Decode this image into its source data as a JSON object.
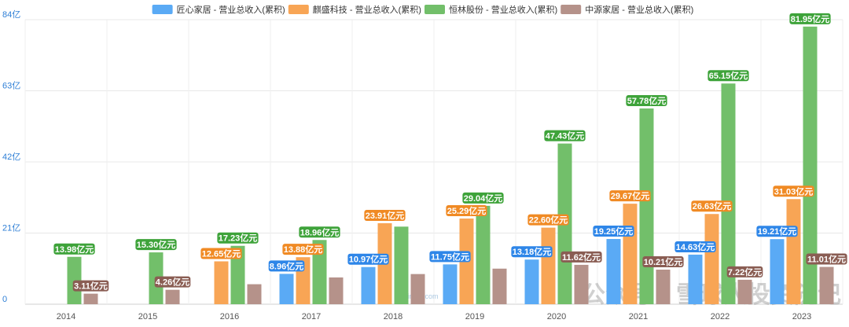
{
  "chart_data": {
    "type": "bar",
    "categories": [
      "2014",
      "2015",
      "2016",
      "2017",
      "2018",
      "2019",
      "2020",
      "2021",
      "2022",
      "2023"
    ],
    "ylim": [
      0,
      84
    ],
    "yticks": [
      0,
      21,
      42,
      63,
      84
    ],
    "ytick_labels": [
      "0",
      "21亿",
      "42亿",
      "63亿",
      "84亿"
    ],
    "legend_position": "top-center",
    "grid": true,
    "series": [
      {
        "name": "匠心家居 - 营业总收入(累积)",
        "color": "#5aaaf5",
        "label_color": "#2e86e8",
        "values": [
          null,
          null,
          null,
          8.96,
          10.97,
          11.75,
          13.18,
          19.25,
          14.63,
          19.21
        ],
        "labels": [
          null,
          null,
          null,
          "8.96亿元",
          "10.97亿元",
          "11.75亿元",
          "13.18亿元",
          "19.25亿元",
          "14.63亿元",
          "19.21亿元"
        ]
      },
      {
        "name": "麒盛科技 - 营业总收入(累积)",
        "color": "#f8a555",
        "label_color": "#f08a24",
        "values": [
          null,
          null,
          12.65,
          13.88,
          23.91,
          25.29,
          22.6,
          29.67,
          26.63,
          31.03
        ],
        "labels": [
          null,
          null,
          "12.65亿元",
          "13.88亿元",
          "23.91亿元",
          "25.29亿元",
          "22.60亿元",
          "29.67亿元",
          "26.63亿元",
          "31.03亿元"
        ]
      },
      {
        "name": "恒林股份 - 营业总收入(累积)",
        "color": "#72bf6a",
        "label_color": "#3ea33a",
        "values": [
          13.98,
          15.3,
          17.23,
          18.96,
          22.9,
          29.04,
          47.43,
          57.78,
          65.15,
          81.95
        ],
        "labels": [
          "13.98亿元",
          "15.30亿元",
          "17.23亿元",
          "18.96亿元",
          null,
          "29.04亿元",
          "47.43亿元",
          "57.78亿元",
          "65.15亿元",
          "81.95亿元"
        ]
      },
      {
        "name": "中源家居 - 营业总收入(累积)",
        "color": "#b5928a",
        "label_color": "#8a5d53",
        "values": [
          3.11,
          4.26,
          5.9,
          7.9,
          8.9,
          10.5,
          11.62,
          10.21,
          7.22,
          11.01
        ],
        "labels": [
          "3.11亿元",
          "4.26亿元",
          null,
          null,
          null,
          null,
          "11.62亿元",
          "10.21亿元",
          "7.22亿元",
          "11.01亿元"
        ]
      }
    ]
  },
  "watermarks": [
    {
      "text": "公众号：雪球人投资随记"
    },
    {
      "text": "lixinger.com"
    }
  ]
}
